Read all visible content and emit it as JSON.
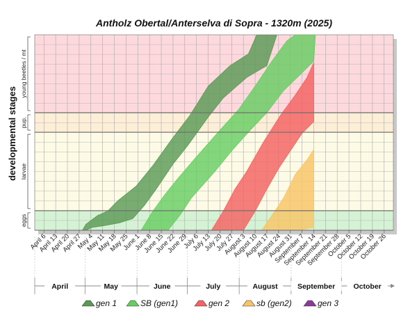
{
  "chart_data": {
    "type": "area",
    "title": "Antholz Obertal/Anterselva di Sopra - 1320m (2025)",
    "ylabel": "developmental stages",
    "y_stages": [
      "eggs",
      "larvae",
      "pup.",
      "young beetles / mt"
    ],
    "stage_colors": [
      "#d6f2d4",
      "#fdfbe6",
      "#fdeed8",
      "#fdd9dd"
    ],
    "x_start_date": "2025-04-01",
    "xlim": [
      "2025-04-01",
      "2025-10-31"
    ],
    "x_ticks": [
      "April 6",
      "April 13",
      "April 20",
      "April 27",
      "May 4",
      "May 11",
      "May 18",
      "May 25",
      "June 1",
      "June 8",
      "June 15",
      "June 22",
      "June 29",
      "July 6",
      "July 13",
      "July 20",
      "July 27",
      "August 3",
      "August 10",
      "August 17",
      "August 24",
      "August 31",
      "September 7",
      "September 14",
      "September 21",
      "September 28",
      "October 5",
      "October 12",
      "October 19",
      "October 26"
    ],
    "months": [
      "April",
      "May",
      "June",
      "July",
      "August",
      "September",
      "October"
    ],
    "series": [
      {
        "name": "gen 1",
        "color": "#5a9a55",
        "upper": [
          [
            "2025-04-29",
            0.0
          ],
          [
            "2025-05-01",
            0.04
          ],
          [
            "2025-05-08",
            0.1
          ],
          [
            "2025-05-14",
            0.13
          ],
          [
            "2025-05-20",
            0.2
          ],
          [
            "2025-05-31",
            0.3
          ],
          [
            "2025-06-10",
            0.44
          ],
          [
            "2025-06-22",
            0.63
          ],
          [
            "2025-07-02",
            0.78
          ],
          [
            "2025-07-13",
            0.98
          ],
          [
            "2025-07-26",
            1.12
          ],
          [
            "2025-08-06",
            1.2
          ],
          [
            "2025-08-11",
            1.33
          ]
        ],
        "lower": [
          [
            "2025-04-29",
            0.0
          ],
          [
            "2025-05-01",
            0.0
          ],
          [
            "2025-05-05",
            0.02
          ],
          [
            "2025-05-11",
            0.03
          ],
          [
            "2025-05-21",
            0.05
          ],
          [
            "2025-05-29",
            0.08
          ],
          [
            "2025-06-05",
            0.17
          ],
          [
            "2025-06-12",
            0.28
          ],
          [
            "2025-06-22",
            0.45
          ],
          [
            "2025-07-01",
            0.58
          ],
          [
            "2025-07-13",
            0.77
          ],
          [
            "2025-07-22",
            0.9
          ],
          [
            "2025-08-05",
            1.04
          ],
          [
            "2025-08-17",
            1.12
          ],
          [
            "2025-08-23",
            1.33
          ]
        ]
      },
      {
        "name": "SB (gen1)",
        "color": "#68cd63",
        "upper": [
          [
            "2025-06-03",
            0.0
          ],
          [
            "2025-06-10",
            0.13
          ],
          [
            "2025-06-17",
            0.24
          ],
          [
            "2025-06-24",
            0.34
          ],
          [
            "2025-07-06",
            0.5
          ],
          [
            "2025-07-20",
            0.68
          ],
          [
            "2025-07-31",
            0.82
          ],
          [
            "2025-08-10",
            0.98
          ],
          [
            "2025-08-20",
            1.15
          ],
          [
            "2025-08-29",
            1.29
          ],
          [
            "2025-09-03",
            1.33
          ]
        ],
        "lower": [
          [
            "2025-06-19",
            0.0
          ],
          [
            "2025-06-26",
            0.1
          ],
          [
            "2025-07-03",
            0.22
          ],
          [
            "2025-07-17",
            0.4
          ],
          [
            "2025-07-27",
            0.54
          ],
          [
            "2025-08-07",
            0.68
          ],
          [
            "2025-08-17",
            0.8
          ],
          [
            "2025-08-27",
            0.95
          ],
          [
            "2025-09-06",
            1.06
          ],
          [
            "2025-09-14",
            1.15
          ],
          [
            "2025-09-15",
            1.33
          ]
        ]
      },
      {
        "name": "gen 2",
        "color": "#f46262",
        "upper": [
          [
            "2025-07-15",
            0.0
          ],
          [
            "2025-07-22",
            0.13
          ],
          [
            "2025-07-29",
            0.28
          ],
          [
            "2025-08-05",
            0.4
          ],
          [
            "2025-08-15",
            0.6
          ],
          [
            "2025-08-25",
            0.78
          ],
          [
            "2025-09-03",
            0.92
          ],
          [
            "2025-09-10",
            1.04
          ],
          [
            "2025-09-14",
            1.14
          ]
        ],
        "lower": [
          [
            "2025-08-03",
            0.0
          ],
          [
            "2025-08-10",
            0.13
          ],
          [
            "2025-08-17",
            0.28
          ],
          [
            "2025-08-24",
            0.42
          ],
          [
            "2025-08-31",
            0.54
          ],
          [
            "2025-09-07",
            0.66
          ],
          [
            "2025-09-14",
            0.74
          ]
        ]
      },
      {
        "name": "sb (gen2)",
        "color": "#f8c466",
        "upper": [
          [
            "2025-08-14",
            0.0
          ],
          [
            "2025-08-20",
            0.1
          ],
          [
            "2025-08-27",
            0.22
          ],
          [
            "2025-09-03",
            0.38
          ],
          [
            "2025-09-10",
            0.48
          ],
          [
            "2025-09-14",
            0.55
          ]
        ],
        "lower": [
          [
            "2025-09-05",
            0.0
          ],
          [
            "2025-09-14",
            0.02
          ]
        ]
      },
      {
        "name": "gen 3",
        "color": "#8b3a9a",
        "upper": [],
        "lower": []
      }
    ],
    "grid": true,
    "legend": "bottom"
  }
}
